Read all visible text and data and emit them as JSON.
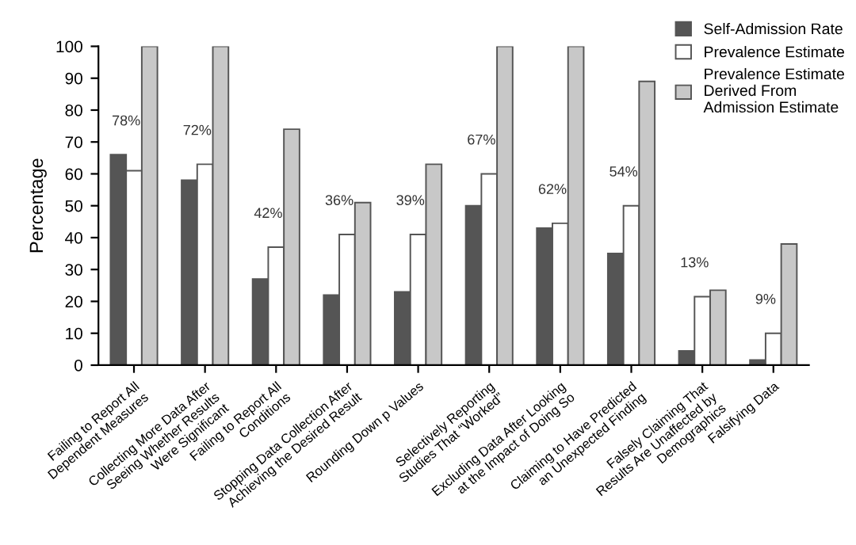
{
  "chart_data": {
    "type": "bar",
    "ylabel": "Percentage",
    "categories": [
      "Failing to Report All\nDependent Measures",
      "Collecting More Data After\nSeeing Whether Results\nWere Significant",
      "Failing to Report All\nConditions",
      "Stopping Data Collection After\nAchieving the Desired Result",
      "Rounding Down p Values",
      "Selectively Reporting\nStudies That “Worked”",
      "Excluding Data After Looking\nat the Impact of Doing So",
      "Claiming to Have Predicted\nan Unexpected Finding",
      "Falsely Claiming That\nResults Are Unaffected by\nDemographics",
      "Falsifying Data"
    ],
    "series": [
      {
        "name": "Self-Admission Rate",
        "color": "#555555",
        "values": [
          66,
          58,
          27,
          22,
          23,
          50,
          43,
          35,
          4.5,
          1.6
        ]
      },
      {
        "name": "Prevalence Estimate",
        "color": "#ffffff",
        "values": [
          61,
          63,
          37,
          41,
          41,
          60,
          44.5,
          50,
          21.5,
          10
        ]
      },
      {
        "name": "Prevalence Estimate\nDerived From\nAdmission Estimate",
        "color": "#c8c8c8",
        "values": [
          100,
          100,
          74,
          51,
          63,
          100,
          100,
          89,
          23.5,
          38
        ]
      }
    ],
    "annotations": [
      {
        "text": "78%",
        "x": "Failing to Report All\nDependent Measures",
        "y": 66
      },
      {
        "text": "72%",
        "x": "Collecting More Data After\nSeeing Whether Results\nWere Significant",
        "y": 63
      },
      {
        "text": "42%",
        "x": "Failing to Report All\nConditions",
        "y": 37
      },
      {
        "text": "36%",
        "x": "Stopping Data Collection After\nAchieving the Desired Result",
        "y": 41
      },
      {
        "text": "39%",
        "x": "Rounding Down p Values",
        "y": 41
      },
      {
        "text": "67%",
        "x": "Selectively Reporting\nStudies That “Worked”",
        "y": 60
      },
      {
        "text": "62%",
        "x": "Excluding Data After Looking\nat the Impact of Doing So",
        "y": 44.5
      },
      {
        "text": "54%",
        "x": "Claiming to Have Predicted\nan Unexpected Finding",
        "y": 50
      },
      {
        "text": "13%",
        "x": "Falsely Claiming That\nResults Are Unaffected by\nDemographics",
        "y": 21.5
      },
      {
        "text": "9%",
        "x": "Falsifying Data",
        "y": 10
      }
    ],
    "ylim": [
      0,
      100
    ],
    "yticks": [
      0,
      10,
      20,
      30,
      40,
      50,
      60,
      70,
      80,
      90,
      100
    ],
    "grid": false,
    "legend": "top right"
  }
}
